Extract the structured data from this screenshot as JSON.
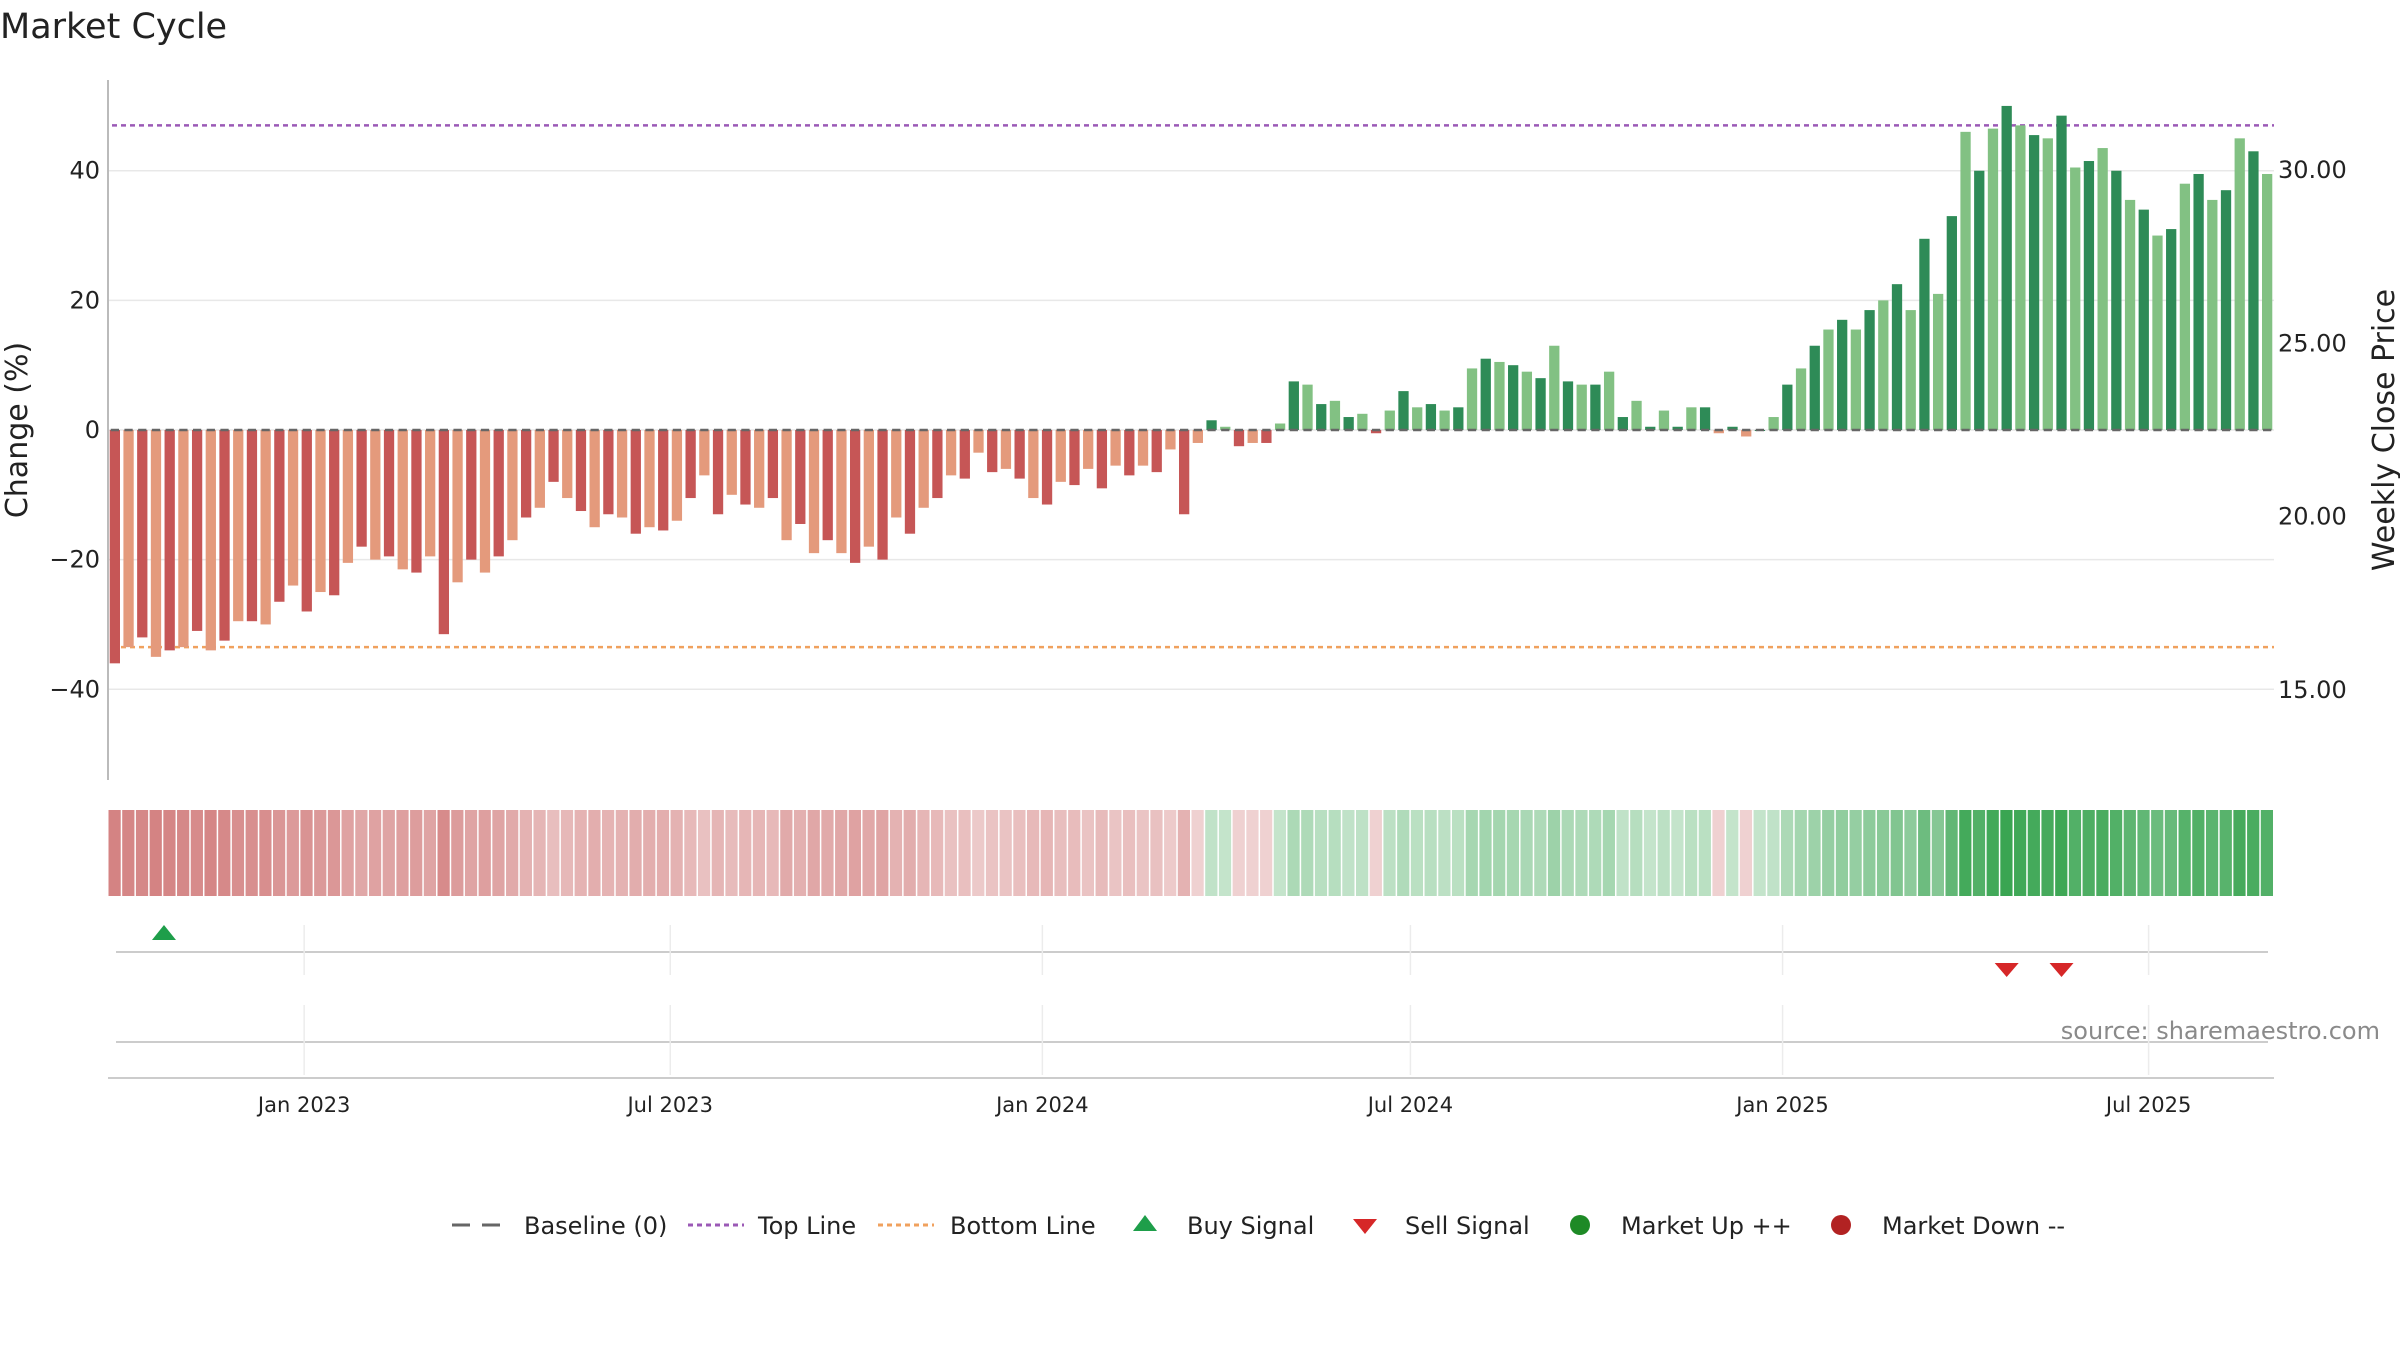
{
  "colors": {
    "down_dark": "#c65656",
    "down_light": "#e49a7c",
    "up_dark": "#2e8b57",
    "up_light": "#82c183",
    "top_line": "#9b59b6",
    "bottom_line": "#f0a15e",
    "baseline": "#666666",
    "buy": "#1e9e4a",
    "sell": "#d62728",
    "market_up": "#1e8a26",
    "market_down": "#b22222",
    "strip_red": "#c96464",
    "strip_green": "#3aa552"
  },
  "chart_data": {
    "type": "bar",
    "title": "Market Cycle",
    "ylabel": "Change (%)",
    "y2label": "Weekly Close Price",
    "ylim": [
      -54,
      54
    ],
    "y2lim": [
      12.4,
      32.6
    ],
    "y_ticks": [
      -40,
      -20,
      0,
      20,
      40
    ],
    "y_tick_labels": [
      "−40",
      "−20",
      "0",
      "20",
      "40"
    ],
    "y2_ticks": [
      15,
      20,
      25,
      30
    ],
    "y2_tick_labels": [
      "15.00",
      "20.00",
      "25.00",
      "30.00"
    ],
    "x_start": "2022-09-26",
    "x_end": "2025-09-01",
    "x_ticks": [
      {
        "date": "2023-01-01",
        "label": "Jan 2023"
      },
      {
        "date": "2023-07-01",
        "label": "Jul 2023"
      },
      {
        "date": "2024-01-01",
        "label": "Jan 2024"
      },
      {
        "date": "2024-07-01",
        "label": "Jul 2024"
      },
      {
        "date": "2025-01-01",
        "label": "Jan 2025"
      },
      {
        "date": "2025-07-01",
        "label": "Jul 2025"
      }
    ],
    "top_line": 47,
    "bottom_line": -33.5,
    "baseline": 0,
    "change_values": [
      -36,
      -33.5,
      -32,
      -35,
      -34,
      -33.5,
      -31,
      -34,
      -32.5,
      -29.5,
      -29.5,
      -30,
      -26.5,
      -24,
      -28,
      -25,
      -25.5,
      -20.5,
      -18,
      -20,
      -19.5,
      -21.5,
      -22,
      -19.5,
      -31.5,
      -23.5,
      -20,
      -22,
      -19.5,
      -17,
      -13.5,
      -12,
      -8,
      -10.5,
      -12.5,
      -15,
      -13,
      -13.5,
      -16,
      -15,
      -15.5,
      -14,
      -10.5,
      -7,
      -13,
      -10,
      -11.5,
      -12,
      -10.5,
      -17,
      -14.5,
      -19,
      -17,
      -19,
      -20.5,
      -18,
      -20,
      -13.5,
      -16,
      -12,
      -10.5,
      -7,
      -7.5,
      -3.5,
      -6.5,
      -6,
      -7.5,
      -10.5,
      -11.5,
      -8,
      -8.5,
      -6,
      -9,
      -5.5,
      -7,
      -5.5,
      -6.5,
      -3,
      -13,
      -2,
      1.5,
      0.5,
      -2.5,
      -2,
      -2,
      1,
      7.5,
      7,
      4,
      4.5,
      2,
      2.5,
      -0.5,
      3,
      6,
      3.5,
      4,
      3,
      3.5,
      9.5,
      11,
      10.5,
      10,
      9,
      8,
      13,
      7.5,
      7,
      7,
      9,
      2,
      4.5,
      0.5,
      3,
      0.5,
      3.5,
      3.5,
      -0.5,
      0.5,
      -1,
      0,
      2,
      7,
      9.5,
      13,
      15.5,
      17,
      15.5,
      18.5,
      20,
      22.5,
      18.5,
      29.5,
      21,
      33,
      46,
      40,
      46.5,
      50,
      47,
      45.5,
      45,
      48.5,
      40.5,
      41.5,
      43.5,
      40,
      35.5,
      34,
      30,
      31,
      38,
      39.5,
      35.5,
      37,
      45,
      43,
      39.5
    ],
    "strip_intensity": [
      0.8,
      0.78,
      0.77,
      0.8,
      0.78,
      0.77,
      0.75,
      0.78,
      0.76,
      0.72,
      0.72,
      0.73,
      0.68,
      0.65,
      0.7,
      0.66,
      0.67,
      0.6,
      0.57,
      0.6,
      0.59,
      0.62,
      0.63,
      0.59,
      0.75,
      0.64,
      0.59,
      0.62,
      0.59,
      0.55,
      0.5,
      0.48,
      0.42,
      0.46,
      0.49,
      0.52,
      0.49,
      0.5,
      0.53,
      0.52,
      0.52,
      0.5,
      0.45,
      0.4,
      0.48,
      0.44,
      0.47,
      0.47,
      0.45,
      0.55,
      0.51,
      0.57,
      0.55,
      0.57,
      0.6,
      0.56,
      0.59,
      0.5,
      0.53,
      0.47,
      0.45,
      0.4,
      0.41,
      0.35,
      0.39,
      0.39,
      0.41,
      0.45,
      0.47,
      0.42,
      0.43,
      0.39,
      0.44,
      0.38,
      0.41,
      0.38,
      0.4,
      0.34,
      0.5,
      0.3,
      0.32,
      0.3,
      0.3,
      0.3,
      0.3,
      0.3,
      0.42,
      0.41,
      0.36,
      0.37,
      0.32,
      0.33,
      0.3,
      0.34,
      0.4,
      0.35,
      0.36,
      0.34,
      0.35,
      0.45,
      0.47,
      0.46,
      0.45,
      0.43,
      0.41,
      0.5,
      0.42,
      0.41,
      0.41,
      0.45,
      0.32,
      0.37,
      0.3,
      0.34,
      0.3,
      0.35,
      0.35,
      0.3,
      0.3,
      0.3,
      0.3,
      0.32,
      0.42,
      0.46,
      0.5,
      0.54,
      0.56,
      0.54,
      0.58,
      0.6,
      0.64,
      0.58,
      0.74,
      0.62,
      0.8,
      0.95,
      0.88,
      0.96,
      1.0,
      0.97,
      0.95,
      0.94,
      0.98,
      0.88,
      0.9,
      0.92,
      0.88,
      0.82,
      0.8,
      0.75,
      0.77,
      0.86,
      0.88,
      0.83,
      0.85,
      0.94,
      0.92,
      0.88
    ],
    "buy_signals": [
      3
    ],
    "sell_signals": [
      138,
      142
    ],
    "legend": [
      {
        "key": "baseline",
        "label": "Baseline (0)"
      },
      {
        "key": "top",
        "label": "Top Line"
      },
      {
        "key": "bottom",
        "label": "Bottom Line"
      },
      {
        "key": "buy",
        "label": "Buy Signal"
      },
      {
        "key": "sell",
        "label": "Sell Signal"
      },
      {
        "key": "market_up",
        "label": "Market Up ++"
      },
      {
        "key": "market_down",
        "label": "Market Down --"
      }
    ],
    "legend_position": "bottom-center",
    "grid": true
  },
  "source_text": "source: sharemaestro.com"
}
